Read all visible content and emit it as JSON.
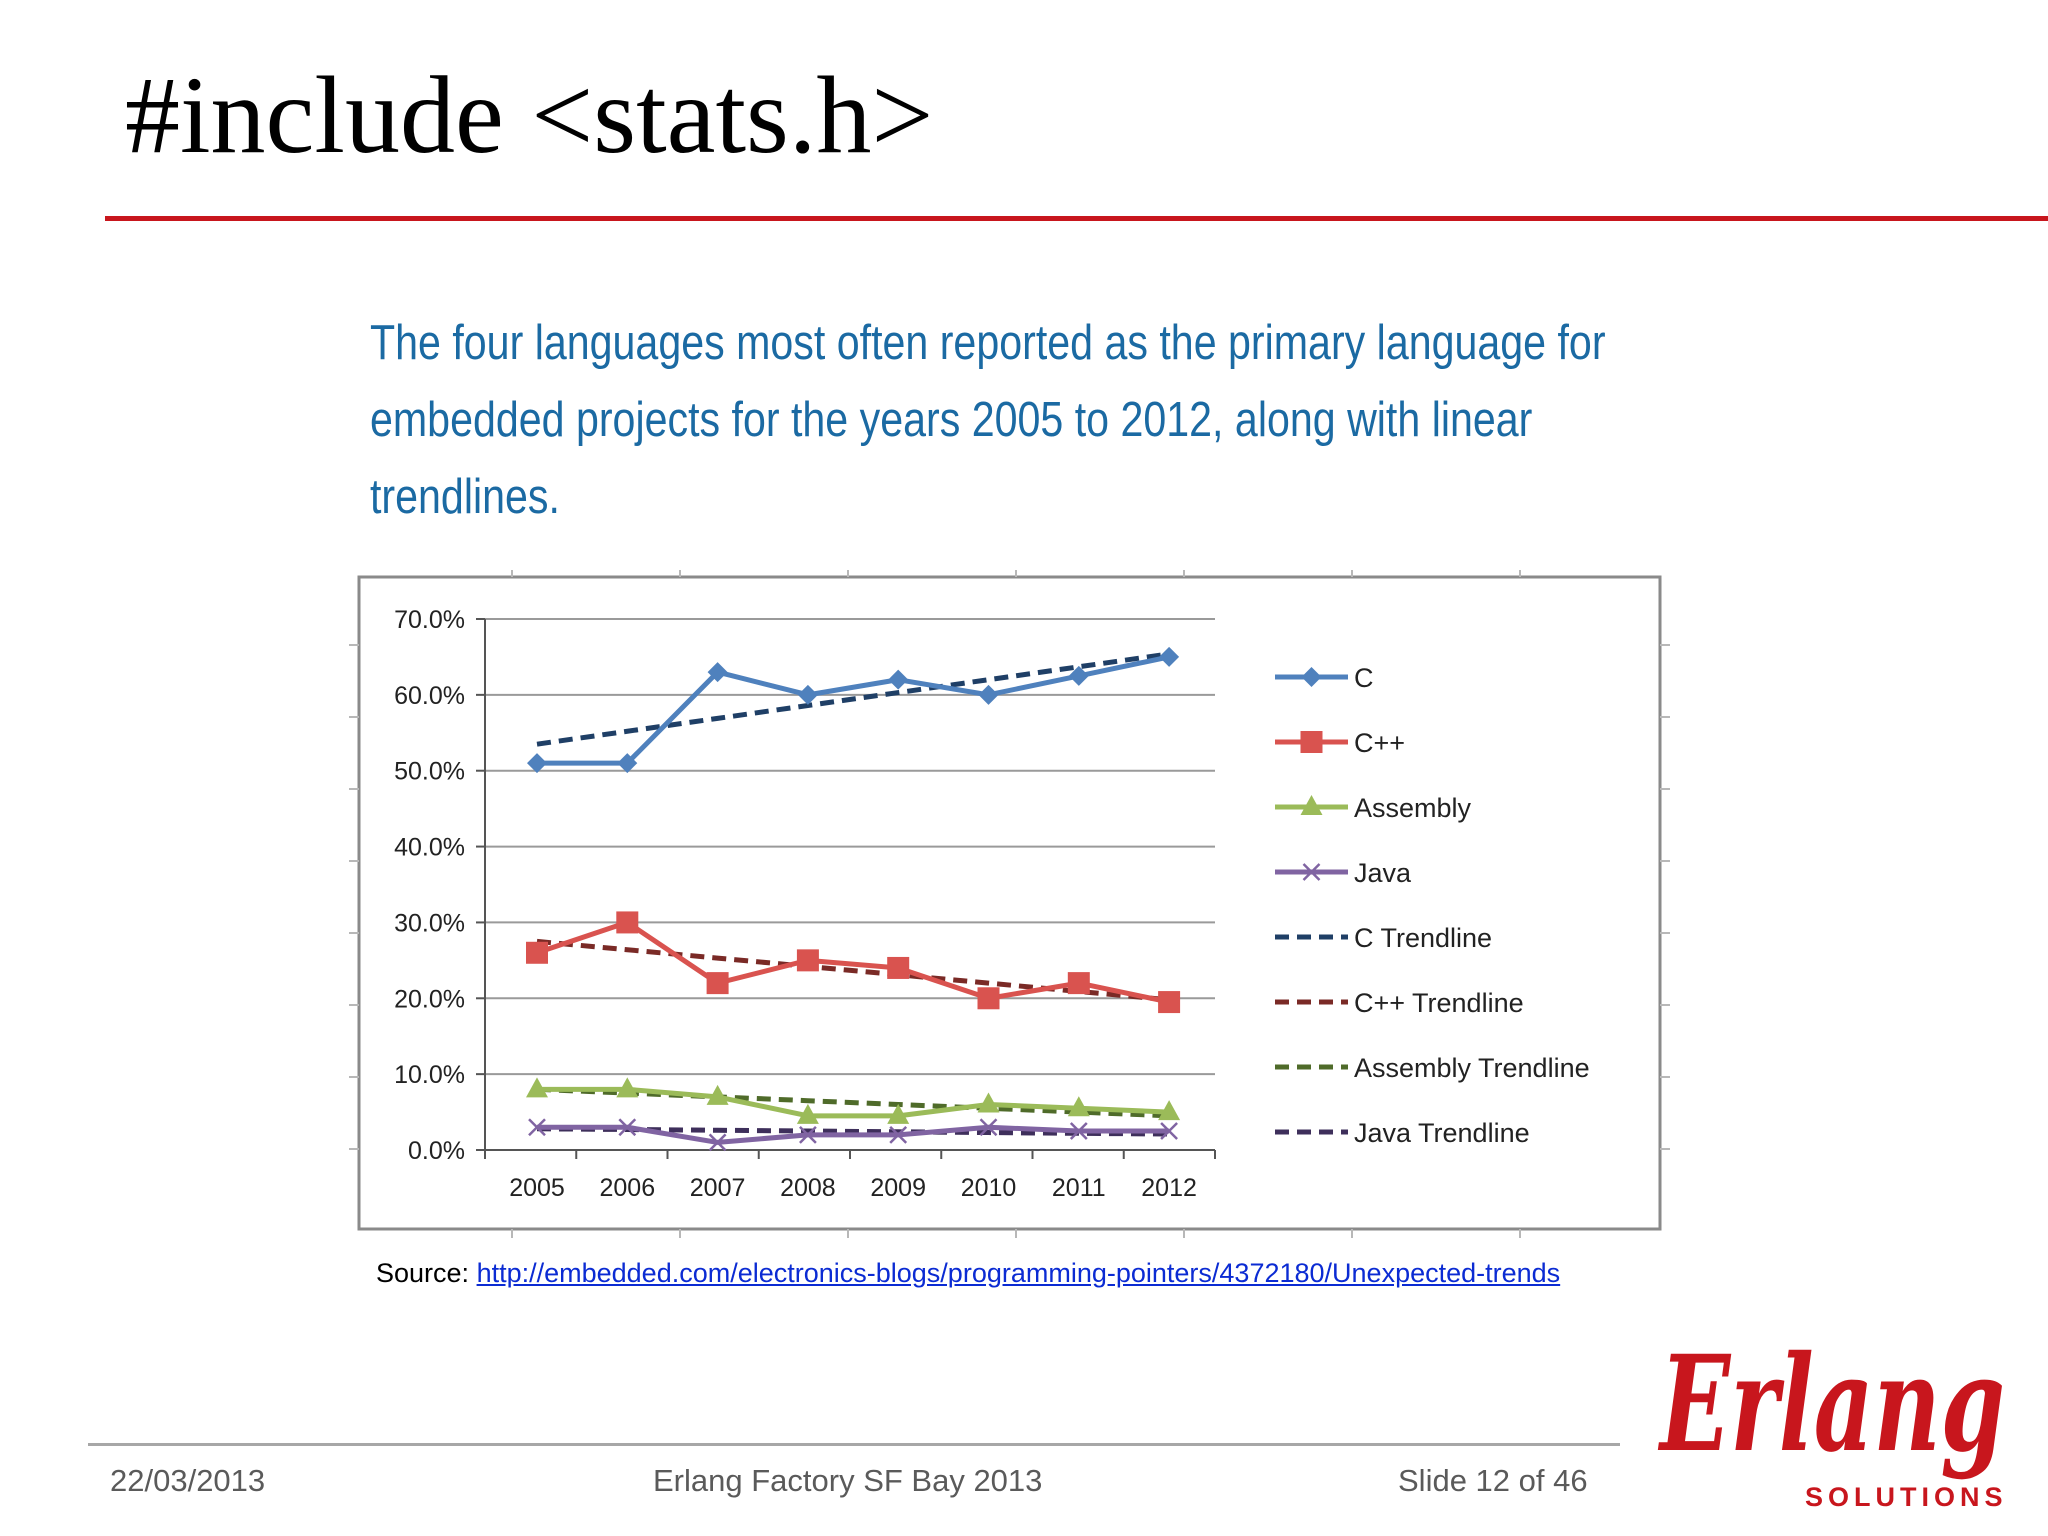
{
  "slide": {
    "title": "#include <stats.h>",
    "caption": "The four languages most often reported as the primary language for embedded projects for the years 2005 to 2012, along with linear trendlines.",
    "source_label": "Source: ",
    "source_url": "http://embedded.com/electronics-blogs/programming-pointers/4372180/Unexpected-trends",
    "accent_color": "#c8161d"
  },
  "footer": {
    "date": "22/03/2013",
    "event": "Erlang Factory SF Bay 2013",
    "slide_number": "Slide 12 of 46"
  },
  "logo": {
    "wordmark": "Erlang",
    "subtitle": "SOLUTIONS",
    "color": "#c8161d"
  },
  "chart_data": {
    "type": "line",
    "title": "",
    "xlabel": "",
    "ylabel": "",
    "x": [
      "2005",
      "2006",
      "2007",
      "2008",
      "2009",
      "2010",
      "2011",
      "2012"
    ],
    "y_ticks": [
      "70.0%",
      "60.0%",
      "50.0%",
      "40.0%",
      "30.0%",
      "20.0%",
      "10.0%",
      "0.0%"
    ],
    "ylim": [
      0,
      70
    ],
    "grid": "horizontal",
    "legend_position": "right",
    "series": [
      {
        "name": "C",
        "values": [
          51,
          51,
          63,
          60,
          62,
          60,
          62.5,
          65
        ],
        "color": "#4f81bd",
        "marker": "diamond",
        "dashed": false
      },
      {
        "name": "C++",
        "values": [
          26,
          30,
          22,
          25,
          24,
          20,
          22,
          19.5
        ],
        "color": "#d9534f",
        "marker": "square",
        "dashed": false
      },
      {
        "name": "Assembly",
        "values": [
          8,
          8,
          7,
          4.5,
          4.5,
          6,
          5.5,
          5
        ],
        "color": "#9bbb59",
        "marker": "triangle",
        "dashed": false
      },
      {
        "name": "Java",
        "values": [
          3,
          3,
          1,
          2,
          2,
          3,
          2.5,
          2.5
        ],
        "color": "#8064a2",
        "marker": "x",
        "dashed": false
      },
      {
        "name": "C Trendline",
        "values": [
          53.5,
          55.2,
          56.9,
          58.6,
          60.3,
          62,
          63.7,
          65.4
        ],
        "color": "#1f3f66",
        "marker": "none",
        "dashed": true
      },
      {
        "name": "C++ Trendline",
        "values": [
          27.5,
          26.4,
          25.3,
          24.2,
          23.1,
          22,
          20.9,
          19.8
        ],
        "color": "#7a2a26",
        "marker": "none",
        "dashed": true
      },
      {
        "name": "Assembly Trendline",
        "values": [
          8,
          7.5,
          7,
          6.5,
          6,
          5.5,
          5,
          4.5
        ],
        "color": "#4f6b2a",
        "marker": "none",
        "dashed": true
      },
      {
        "name": "Java Trendline",
        "values": [
          2.8,
          2.7,
          2.6,
          2.5,
          2.4,
          2.3,
          2.2,
          2.1
        ],
        "color": "#3e2f5b",
        "marker": "none",
        "dashed": true
      }
    ]
  }
}
